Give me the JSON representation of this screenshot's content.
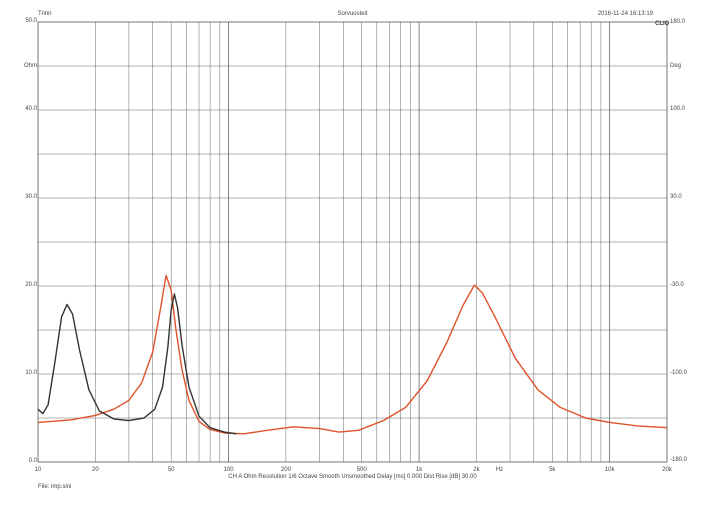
{
  "header": {
    "left": "Trinn",
    "center": "Sorvuosteit",
    "timestamp": "2016-11-24 16:13:19",
    "logo": "CLIO"
  },
  "footer": {
    "settings": "CH A   Ohm   Resolution 1/6 Octave   Smooth Unsmoothed   Delay [ms] 0.000   Dist Rise [dB] 30.00",
    "file": "File: imp.sini"
  },
  "chart_data": {
    "type": "line",
    "x_scale": "log",
    "xlim": [
      10,
      20000
    ],
    "x_ticks": [
      10,
      20,
      50,
      100,
      200,
      500,
      1000,
      2000,
      5000,
      10000,
      20000
    ],
    "x_tick_labels": [
      "10",
      "20",
      "50",
      "100",
      "200",
      "500",
      "1k",
      "2k",
      "5k",
      "10k",
      "20k"
    ],
    "x_unit_label": "Hz",
    "left_axis": {
      "unit": "Ohm",
      "ylim": [
        0,
        50
      ],
      "ticks": [
        0,
        10,
        20,
        30,
        40,
        50
      ],
      "tick_labels": [
        "0.0",
        "10.0",
        "20.0",
        "30.0",
        "40.0",
        "50.0"
      ]
    },
    "right_axis": {
      "unit": "Deg",
      "ticks": [
        -180,
        -100,
        -30,
        30,
        100,
        180
      ],
      "tick_labels": [
        "-180.0",
        "-100.0",
        "-30.0",
        "30.0",
        "100.0",
        "180.0"
      ]
    },
    "grid": true,
    "series": [
      {
        "color": "#e0522a",
        "points": [
          [
            10,
            4.5
          ],
          [
            15,
            4.8
          ],
          [
            20,
            5.3
          ],
          [
            25,
            6
          ],
          [
            30,
            7
          ],
          [
            35,
            9
          ],
          [
            40,
            12.5
          ],
          [
            44,
            17.5
          ],
          [
            47,
            21.2
          ],
          [
            50,
            19.5
          ],
          [
            53,
            15
          ],
          [
            57,
            10.5
          ],
          [
            62,
            7
          ],
          [
            70,
            4.6
          ],
          [
            80,
            3.7
          ],
          [
            95,
            3.3
          ],
          [
            120,
            3.2
          ],
          [
            160,
            3.6
          ],
          [
            220,
            4
          ],
          [
            300,
            3.8
          ],
          [
            380,
            3.4
          ],
          [
            480,
            3.6
          ],
          [
            650,
            4.7
          ],
          [
            850,
            6.2
          ],
          [
            1100,
            9.2
          ],
          [
            1400,
            13.6
          ],
          [
            1700,
            17.8
          ],
          [
            1950,
            20.1
          ],
          [
            2150,
            19.2
          ],
          [
            2500,
            16.5
          ],
          [
            3200,
            11.8
          ],
          [
            4200,
            8.2
          ],
          [
            5500,
            6.2
          ],
          [
            7500,
            5
          ],
          [
            10000,
            4.5
          ],
          [
            14000,
            4.1
          ],
          [
            20000,
            3.9
          ]
        ]
      },
      {
        "color": "#333333",
        "points": [
          [
            10,
            6
          ],
          [
            10.6,
            5.5
          ],
          [
            11.3,
            6.5
          ],
          [
            12.3,
            11.5
          ],
          [
            13.3,
            16.5
          ],
          [
            14.2,
            17.9
          ],
          [
            15.2,
            16.8
          ],
          [
            16.5,
            12.8
          ],
          [
            18.5,
            8.2
          ],
          [
            21,
            5.8
          ],
          [
            25,
            4.9
          ],
          [
            30,
            4.7
          ],
          [
            36,
            5
          ],
          [
            41,
            6
          ],
          [
            45,
            8.5
          ],
          [
            48,
            13
          ],
          [
            50,
            17.3
          ],
          [
            52,
            19.1
          ],
          [
            54,
            17.5
          ],
          [
            57,
            13.3
          ],
          [
            62,
            8.5
          ],
          [
            70,
            5.2
          ],
          [
            80,
            3.9
          ],
          [
            95,
            3.4
          ],
          [
            110,
            3.2
          ]
        ]
      }
    ]
  }
}
